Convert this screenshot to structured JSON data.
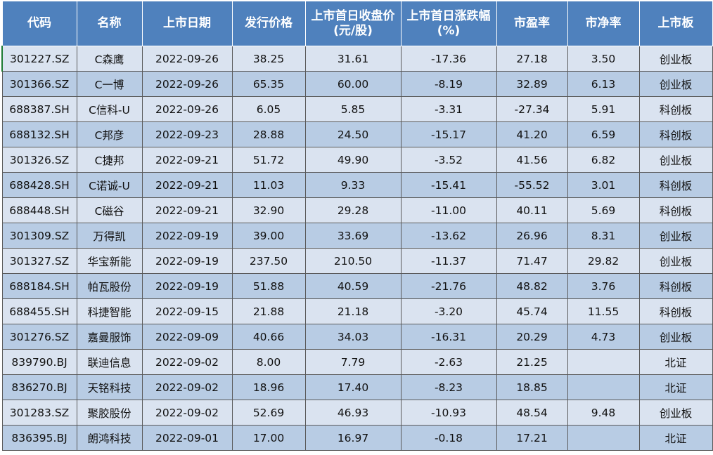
{
  "headers": [
    "代码",
    "名称",
    "上市日期",
    "发行价格",
    "上市首日收盘价(元/股)",
    "上市首日涨跌幅(%)",
    "市盈率",
    "市净率",
    "上市板"
  ],
  "rows": [
    [
      "301227.SZ",
      "C森鹰",
      "2022-09-26",
      "38.25",
      "31.61",
      "-17.36",
      "27.18",
      "3.50",
      "创业板"
    ],
    [
      "301366.SZ",
      "C一博",
      "2022-09-26",
      "65.35",
      "60.00",
      "-8.19",
      "32.89",
      "6.13",
      "创业板"
    ],
    [
      "688387.SH",
      "C信科-U",
      "2022-09-26",
      "6.05",
      "5.85",
      "-3.31",
      "-27.34",
      "5.91",
      "科创板"
    ],
    [
      "688132.SH",
      "C邦彦",
      "2022-09-23",
      "28.88",
      "24.50",
      "-15.17",
      "41.20",
      "6.59",
      "科创板"
    ],
    [
      "301326.SZ",
      "C捷邦",
      "2022-09-21",
      "51.72",
      "49.90",
      "-3.52",
      "41.56",
      "6.82",
      "创业板"
    ],
    [
      "688428.SH",
      "C诺诚-U",
      "2022-09-21",
      "11.03",
      "9.33",
      "-15.41",
      "-55.52",
      "3.01",
      "科创板"
    ],
    [
      "688448.SH",
      "C磁谷",
      "2022-09-21",
      "32.90",
      "29.28",
      "-11.00",
      "40.11",
      "5.69",
      "科创板"
    ],
    [
      "301309.SZ",
      "万得凯",
      "2022-09-19",
      "39.00",
      "33.69",
      "-13.62",
      "26.96",
      "8.31",
      "创业板"
    ],
    [
      "301327.SZ",
      "华宝新能",
      "2022-09-19",
      "237.50",
      "210.50",
      "-11.37",
      "71.47",
      "29.82",
      "创业板"
    ],
    [
      "688184.SH",
      "帕瓦股份",
      "2022-09-19",
      "51.88",
      "40.59",
      "-21.76",
      "48.82",
      "3.76",
      "科创板"
    ],
    [
      "688455.SH",
      "科捷智能",
      "2022-09-15",
      "21.88",
      "21.18",
      "-3.20",
      "45.74",
      "11.55",
      "科创板"
    ],
    [
      "301276.SZ",
      "嘉曼服饰",
      "2022-09-09",
      "40.66",
      "34.03",
      "-16.31",
      "20.29",
      "4.73",
      "创业板"
    ],
    [
      "839790.BJ",
      "联迪信息",
      "2022-09-02",
      "8.00",
      "7.79",
      "-2.63",
      "21.25",
      "",
      "北证"
    ],
    [
      "836270.BJ",
      "天铭科技",
      "2022-09-02",
      "18.96",
      "17.40",
      "-8.23",
      "18.85",
      "",
      "北证"
    ],
    [
      "301283.SZ",
      "聚胶股份",
      "2022-09-02",
      "52.69",
      "46.93",
      "-10.93",
      "48.54",
      "9.48",
      "创业板"
    ],
    [
      "836395.BJ",
      "朗鸿科技",
      "2022-09-01",
      "17.00",
      "16.97",
      "-0.18",
      "17.21",
      "",
      "北证"
    ]
  ]
}
